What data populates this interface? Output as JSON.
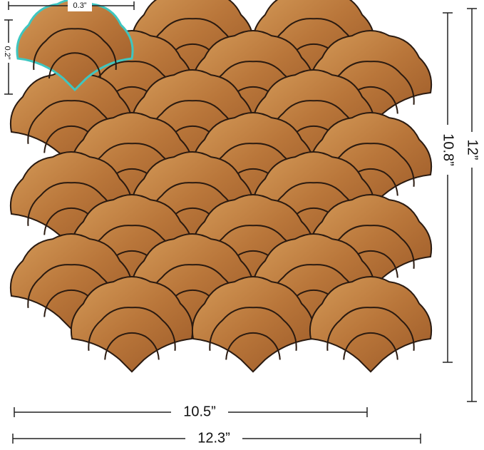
{
  "dimensions": {
    "tile_width": "0.3”",
    "tile_height": "0.2”",
    "inner_height": "10.8”",
    "outer_height": "12”",
    "inner_width": "10.5”",
    "outer_width": "12.3”"
  }
}
